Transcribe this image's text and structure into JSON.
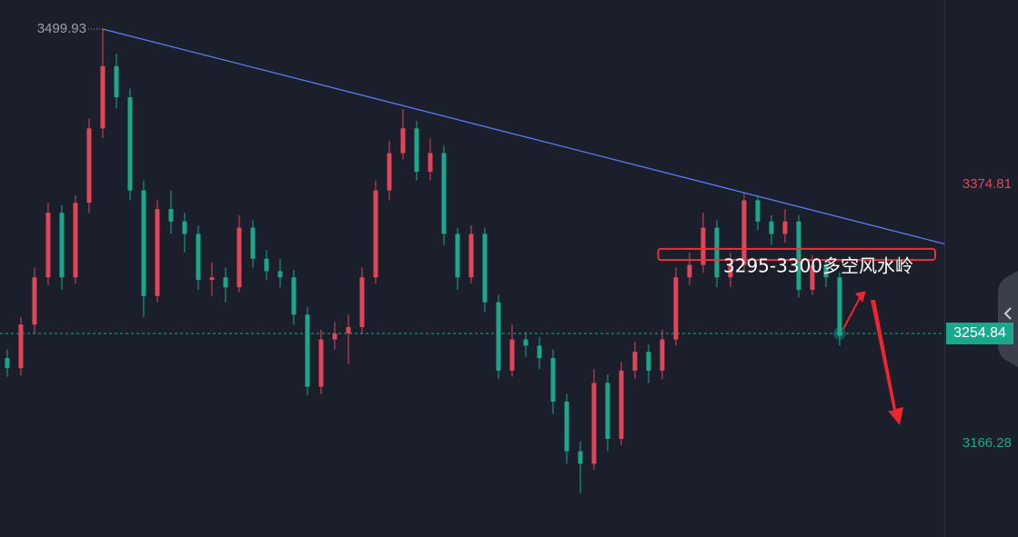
{
  "chart_data": {
    "type": "candlestick",
    "ylim": [
      3091,
      3523.3
    ],
    "xlim": [
      -0.53,
      68.67
    ],
    "yticks": [
      3374.81,
      3166.28
    ],
    "up_color": "#e0465a",
    "down_color": "#1aa88c",
    "open": [
      3235,
      3227,
      3262,
      3300,
      3352,
      3300,
      3360,
      3420,
      3470,
      3445,
      3370,
      3285,
      3355,
      3345,
      3335,
      3298,
      3300,
      3292,
      3340,
      3315,
      3305,
      3300,
      3270,
      3212,
      3250,
      3255,
      3260,
      3300,
      3370,
      3400,
      3420,
      3385,
      3400,
      3335,
      3300,
      3335,
      3280,
      3225,
      3250,
      3245,
      3235,
      3200,
      3160,
      3150,
      3215,
      3170,
      3225,
      3240,
      3225,
      3250,
      3300,
      3310,
      3340,
      3300,
      3310,
      3362,
      3345,
      3335,
      3345,
      3290,
      3310,
      3300
    ],
    "high": [
      3242,
      3268,
      3308,
      3360,
      3358,
      3366,
      3428,
      3499.93,
      3480,
      3452,
      3378,
      3362,
      3370,
      3352,
      3342,
      3312,
      3308,
      3350,
      3346,
      3322,
      3315,
      3306,
      3276,
      3258,
      3264,
      3270,
      3308,
      3378,
      3410,
      3435.5,
      3426,
      3412,
      3406,
      3340,
      3342,
      3340,
      3286,
      3262,
      3256,
      3252,
      3242,
      3206,
      3168,
      3226,
      3222,
      3232,
      3248,
      3246,
      3258,
      3308,
      3320,
      3352,
      3346,
      3320,
      3368,
      3366,
      3350,
      3355,
      3350,
      3318,
      3315,
      3304
    ],
    "low": [
      3220,
      3221,
      3255,
      3294,
      3290,
      3295,
      3352,
      3412,
      3436,
      3362,
      3268,
      3280,
      3335,
      3320,
      3290,
      3285,
      3280,
      3288,
      3308,
      3298,
      3292,
      3262,
      3205,
      3206,
      3242,
      3230,
      3254,
      3295,
      3362,
      3395,
      3378,
      3378,
      3326,
      3290,
      3295,
      3272,
      3218,
      3220,
      3236,
      3226,
      3190,
      3150,
      3126,
      3145,
      3160,
      3165,
      3218,
      3215,
      3218,
      3245,
      3294,
      3304,
      3292,
      3292,
      3305,
      3338,
      3326,
      3328,
      3284,
      3286,
      3292,
      3245
    ],
    "close": [
      3227,
      3262,
      3300,
      3352,
      3300,
      3360,
      3420,
      3470,
      3445,
      3370,
      3285,
      3355,
      3345,
      3335,
      3298,
      3300,
      3292,
      3340,
      3315,
      3305,
      3300,
      3270,
      3212,
      3250,
      3255,
      3260,
      3300,
      3370,
      3400,
      3420,
      3385,
      3400,
      3335,
      3300,
      3335,
      3280,
      3225,
      3250,
      3245,
      3235,
      3200,
      3160,
      3150,
      3215,
      3170,
      3225,
      3240,
      3225,
      3250,
      3300,
      3310,
      3340,
      3300,
      3310,
      3362,
      3345,
      3335,
      3345,
      3290,
      3310,
      3300,
      3254.84
    ],
    "high_label": 3499.93,
    "last_price": 3254.84,
    "trendline": {
      "color": "#5b7cf0",
      "x": [
        7,
        68.67
      ],
      "y": [
        3499.93,
        3327
      ]
    },
    "zone": {
      "color": "#e8323c",
      "x": [
        47.7,
        68
      ],
      "y": [
        3314,
        3323
      ]
    },
    "annotation": "3295-3300多空风水岭"
  }
}
